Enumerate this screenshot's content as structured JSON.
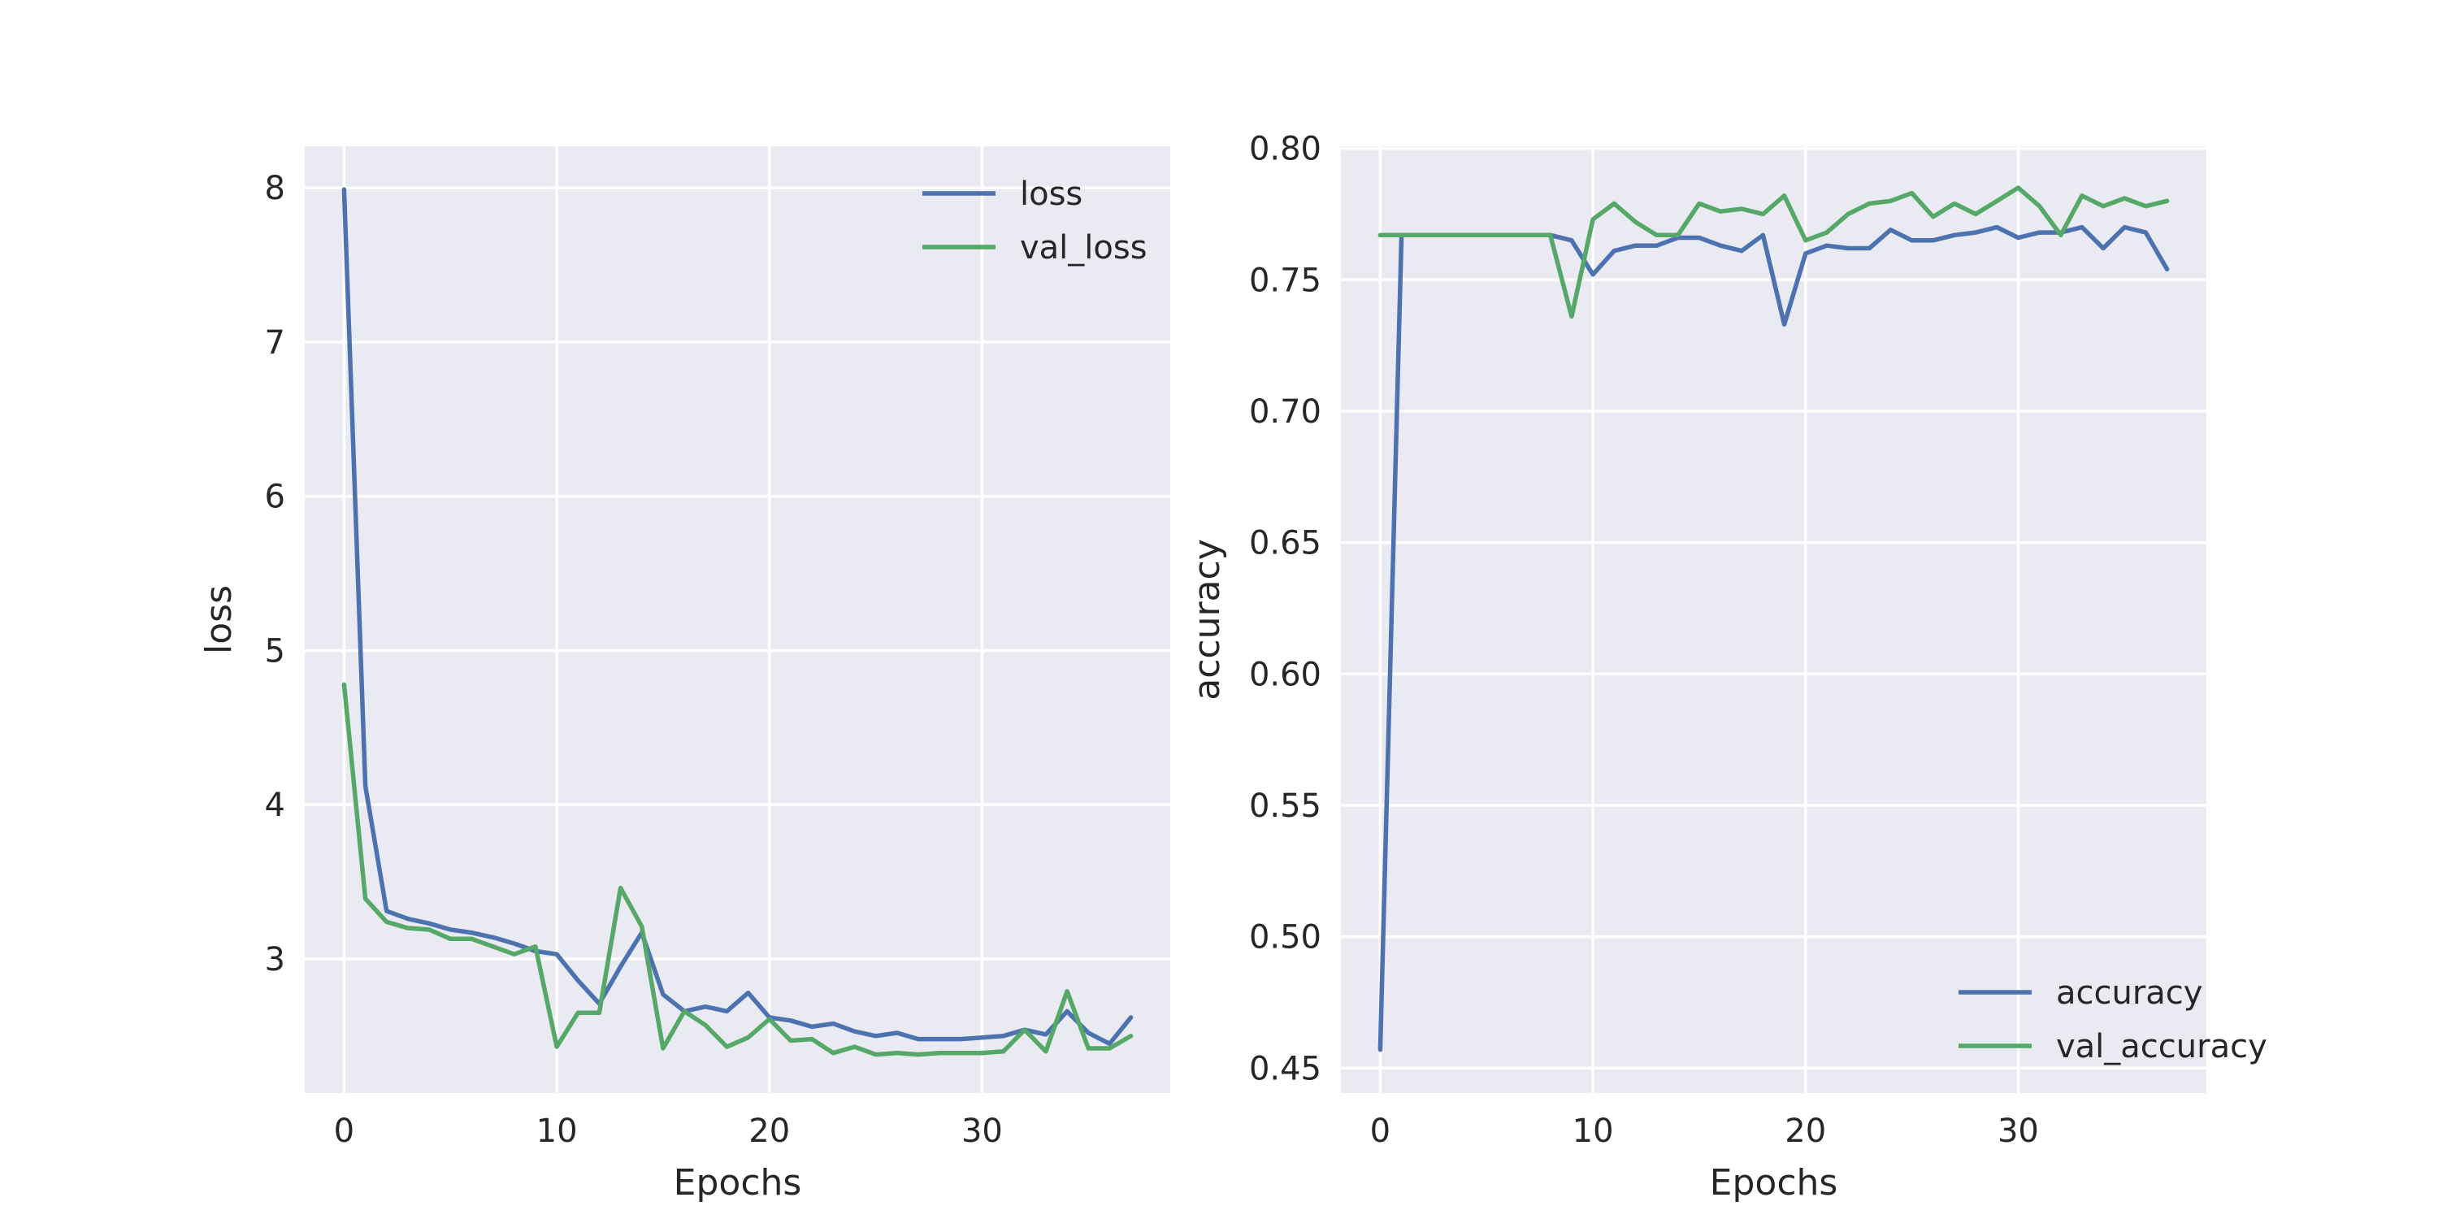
{
  "chart_data": [
    {
      "type": "line",
      "xlabel": "Epochs",
      "ylabel": "loss",
      "xlim": [
        -1.85,
        38.85
      ],
      "ylim": [
        2.13,
        8.27
      ],
      "xticks": [
        0,
        10,
        20,
        30
      ],
      "xtick_labels": [
        "0",
        "10",
        "20",
        "30"
      ],
      "yticks": [
        3,
        4,
        5,
        6,
        7,
        8
      ],
      "ytick_labels": [
        "3",
        "4",
        "5",
        "6",
        "7",
        "8"
      ],
      "grid": true,
      "legend_position": "upper-right",
      "x": [
        0,
        1,
        2,
        3,
        4,
        5,
        6,
        7,
        8,
        9,
        10,
        11,
        12,
        13,
        14,
        15,
        16,
        17,
        18,
        19,
        20,
        21,
        22,
        23,
        24,
        25,
        26,
        27,
        28,
        29,
        30,
        31,
        32,
        33,
        34,
        35,
        36,
        37
      ],
      "series": [
        {
          "name": "loss",
          "color": "#4c72b0",
          "values": [
            7.99,
            4.12,
            3.31,
            3.26,
            3.23,
            3.19,
            3.17,
            3.14,
            3.1,
            3.05,
            3.03,
            2.86,
            2.71,
            2.95,
            3.17,
            2.77,
            2.66,
            2.69,
            2.66,
            2.78,
            2.62,
            2.6,
            2.56,
            2.58,
            2.53,
            2.5,
            2.52,
            2.48,
            2.48,
            2.48,
            2.49,
            2.5,
            2.54,
            2.51,
            2.66,
            2.52,
            2.45,
            2.62
          ]
        },
        {
          "name": "val_loss",
          "color": "#55a868",
          "values": [
            4.78,
            3.39,
            3.24,
            3.2,
            3.19,
            3.13,
            3.13,
            3.08,
            3.03,
            3.08,
            2.43,
            2.65,
            2.65,
            3.46,
            3.21,
            2.42,
            2.66,
            2.57,
            2.43,
            2.49,
            2.61,
            2.47,
            2.48,
            2.39,
            2.43,
            2.38,
            2.39,
            2.38,
            2.39,
            2.39,
            2.39,
            2.4,
            2.54,
            2.4,
            2.79,
            2.42,
            2.42,
            2.5
          ]
        }
      ]
    },
    {
      "type": "line",
      "xlabel": "Epochs",
      "ylabel": "accuracy",
      "xlim": [
        -1.85,
        38.85
      ],
      "ylim": [
        0.4405,
        0.8008
      ],
      "xticks": [
        0,
        10,
        20,
        30
      ],
      "xtick_labels": [
        "0",
        "10",
        "20",
        "30"
      ],
      "yticks": [
        0.45,
        0.5,
        0.55,
        0.6,
        0.65,
        0.7,
        0.75,
        0.8
      ],
      "ytick_labels": [
        "0.45",
        "0.50",
        "0.55",
        "0.60",
        "0.65",
        "0.70",
        "0.75",
        "0.80"
      ],
      "grid": true,
      "legend_position": "lower-right",
      "x": [
        0,
        1,
        2,
        3,
        4,
        5,
        6,
        7,
        8,
        9,
        10,
        11,
        12,
        13,
        14,
        15,
        16,
        17,
        18,
        19,
        20,
        21,
        22,
        23,
        24,
        25,
        26,
        27,
        28,
        29,
        30,
        31,
        32,
        33,
        34,
        35,
        36,
        37
      ],
      "series": [
        {
          "name": "accuracy",
          "color": "#4c72b0",
          "values": [
            0.457,
            0.767,
            0.767,
            0.767,
            0.767,
            0.767,
            0.767,
            0.767,
            0.767,
            0.765,
            0.752,
            0.761,
            0.763,
            0.763,
            0.766,
            0.766,
            0.763,
            0.761,
            0.767,
            0.733,
            0.76,
            0.763,
            0.762,
            0.762,
            0.769,
            0.765,
            0.765,
            0.767,
            0.768,
            0.77,
            0.766,
            0.768,
            0.768,
            0.77,
            0.762,
            0.77,
            0.768,
            0.754
          ]
        },
        {
          "name": "val_accuracy",
          "color": "#55a868",
          "values": [
            0.767,
            0.767,
            0.767,
            0.767,
            0.767,
            0.767,
            0.767,
            0.767,
            0.767,
            0.736,
            0.773,
            0.779,
            0.772,
            0.767,
            0.767,
            0.779,
            0.776,
            0.777,
            0.775,
            0.782,
            0.765,
            0.768,
            0.775,
            0.779,
            0.78,
            0.783,
            0.774,
            0.779,
            0.775,
            0.78,
            0.785,
            0.778,
            0.767,
            0.782,
            0.778,
            0.781,
            0.778,
            0.78
          ]
        }
      ]
    }
  ]
}
